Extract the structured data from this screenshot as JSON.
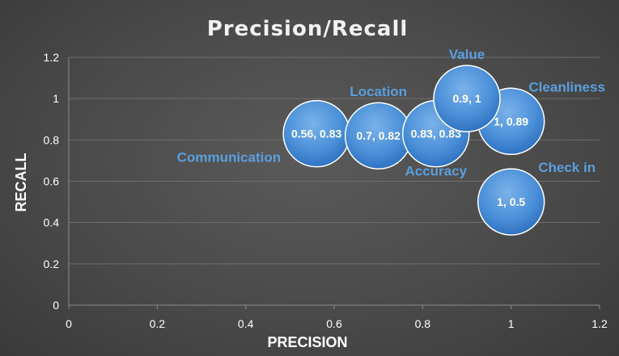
{
  "chart_data": {
    "type": "scatter",
    "subtype": "bubble",
    "title": "Precision/Recall",
    "xlabel": "PRECISION",
    "ylabel": "RECALL",
    "xlim": [
      0,
      1.2
    ],
    "ylim": [
      0,
      1.2
    ],
    "x_ticks": [
      "0",
      "0.2",
      "0.4",
      "0.6",
      "0.8",
      "1",
      "1.2"
    ],
    "y_ticks": [
      "0",
      "0.2",
      "0.4",
      "0.6",
      "0.8",
      "1",
      "1.2"
    ],
    "grid": "horizontal",
    "legend": "none",
    "points": [
      {
        "name": "Communication",
        "x": 0.56,
        "y": 0.83,
        "label": "0.56, 0.83",
        "name_position": "left"
      },
      {
        "name": "Location",
        "x": 0.7,
        "y": 0.82,
        "label": "0.7, 0.82",
        "name_position": "above"
      },
      {
        "name": "Accuracy",
        "x": 0.83,
        "y": 0.83,
        "label": "0.83, 0.83",
        "name_position": "below"
      },
      {
        "name": "Cleanliness",
        "x": 1.0,
        "y": 0.89,
        "label": "1, 0.89",
        "name_position": "above-right"
      },
      {
        "name": "Value",
        "x": 0.9,
        "y": 1.0,
        "label": "0.9, 1",
        "name_position": "above"
      },
      {
        "name": "Check in",
        "x": 1.0,
        "y": 0.5,
        "label": "1, 0.5",
        "name_position": "above-right"
      }
    ]
  },
  "colors": {
    "bubble_light": "#6fa8e6",
    "bubble_dark": "#2f78c8",
    "bubble_outline": "#ffffff",
    "label_text": "#5a9fe0"
  }
}
